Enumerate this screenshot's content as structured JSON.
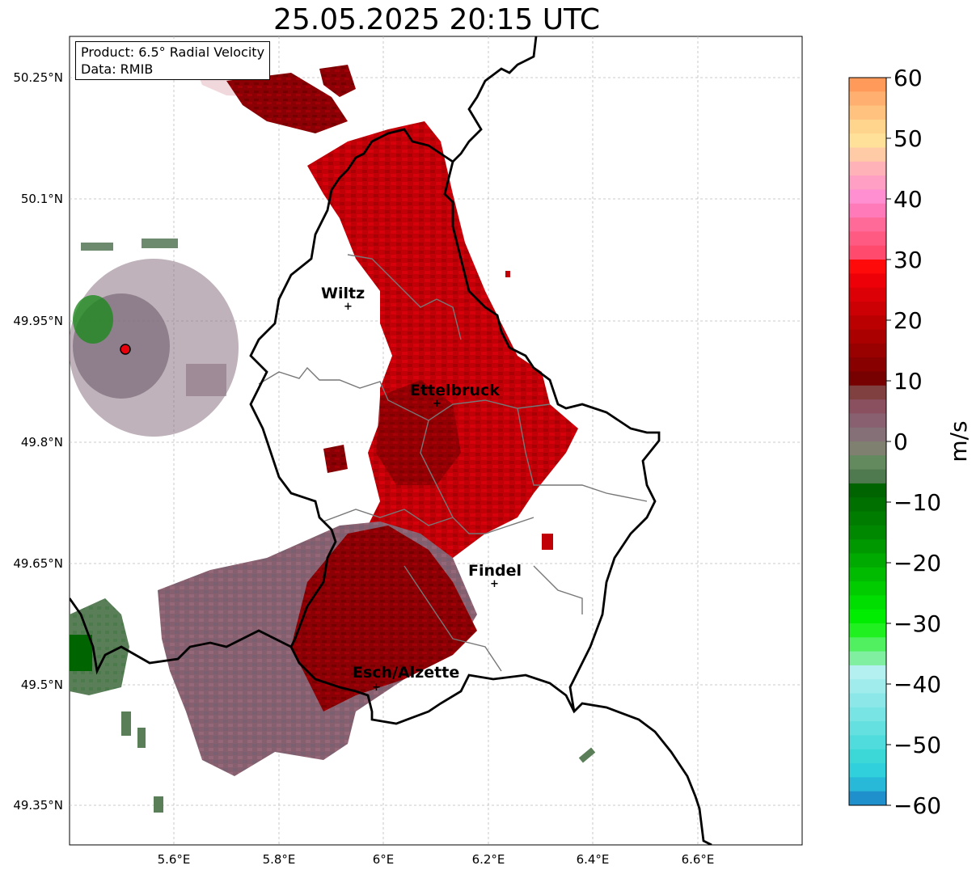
{
  "title": "25.05.2025 20:15 UTC",
  "info": {
    "product": "Product: 6.5° Radial Velocity",
    "data": "Data: RMIB"
  },
  "axes": {
    "lon_ticks": [
      "5.6°E",
      "5.8°E",
      "6°E",
      "6.2°E",
      "6.4°E",
      "6.6°E"
    ],
    "lat_ticks": [
      "50.25°N",
      "50.1°N",
      "49.95°N",
      "49.8°N",
      "49.65°N",
      "49.5°N",
      "49.35°N"
    ]
  },
  "places": [
    {
      "name": "Wiltz"
    },
    {
      "name": "Ettelbruck"
    },
    {
      "name": "Findel"
    },
    {
      "name": "Esch/Alzette"
    }
  ],
  "radar_site": {
    "color": "#e8000a"
  },
  "colorbar": {
    "label": "m/s",
    "ticks": [
      "60",
      "50",
      "40",
      "30",
      "20",
      "10",
      "0",
      "−10",
      "−20",
      "−30",
      "−40",
      "−50",
      "−60"
    ],
    "colors": [
      "#ff9a5a",
      "#ffb070",
      "#ffc27f",
      "#ffd58d",
      "#ffe19a",
      "#ffcba6",
      "#ffb2b8",
      "#ff9fc4",
      "#ff8fd0",
      "#ff7ab8",
      "#ff6a98",
      "#ff5a82",
      "#ff4a6e",
      "#ff0a0a",
      "#ee0008",
      "#dc0006",
      "#cc0004",
      "#bb0002",
      "#aa0000",
      "#990000",
      "#880000",
      "#770000",
      "#804040",
      "#8a5060",
      "#886070",
      "#857078",
      "#7f8070",
      "#628a5e",
      "#4f7a50",
      "#006400",
      "#007000",
      "#007c00",
      "#008800",
      "#009800",
      "#00aa00",
      "#00bb00",
      "#00cc00",
      "#00dd00",
      "#00ec00",
      "#20f020",
      "#50f060",
      "#80f0a0",
      "#b4f0f0",
      "#a0ecec",
      "#8ce8e8",
      "#78e4e4",
      "#64e0e0",
      "#50dcdc",
      "#3cd8d8",
      "#30d0dc",
      "#28b8d8",
      "#2090cc"
    ]
  }
}
